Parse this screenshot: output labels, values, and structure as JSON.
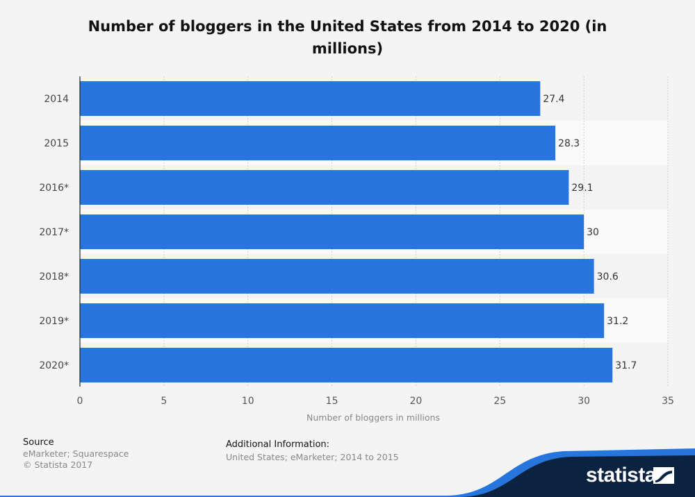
{
  "chart_data": {
    "type": "bar",
    "orientation": "horizontal",
    "title": "Number of bloggers in the United States from 2014 to 2020 (in millions)",
    "xlabel": "Number of bloggers in millions",
    "ylabel": "",
    "categories": [
      "2014",
      "2015",
      "2016*",
      "2017*",
      "2018*",
      "2019*",
      "2020*"
    ],
    "values": [
      27.4,
      28.3,
      29.1,
      30,
      30.6,
      31.2,
      31.7
    ],
    "value_labels": [
      "27.4",
      "28.3",
      "29.1",
      "30",
      "30.6",
      "31.2",
      "31.7"
    ],
    "xlim": [
      0,
      35
    ],
    "xticks": [
      "0",
      "5",
      "10",
      "15",
      "20",
      "25",
      "30",
      "35"
    ],
    "grid": true,
    "bar_color": "#2776dd"
  },
  "footer": {
    "source_label": "Source",
    "source_value": "eMarketer; Squarespace",
    "copyright": "© Statista 2017",
    "additional_label": "Additional Information:",
    "additional_value": "United States; eMarketer; 2014 to 2015"
  },
  "brand": {
    "name": "statista",
    "accent_color": "#2776dd",
    "dark_color": "#0b2341"
  }
}
